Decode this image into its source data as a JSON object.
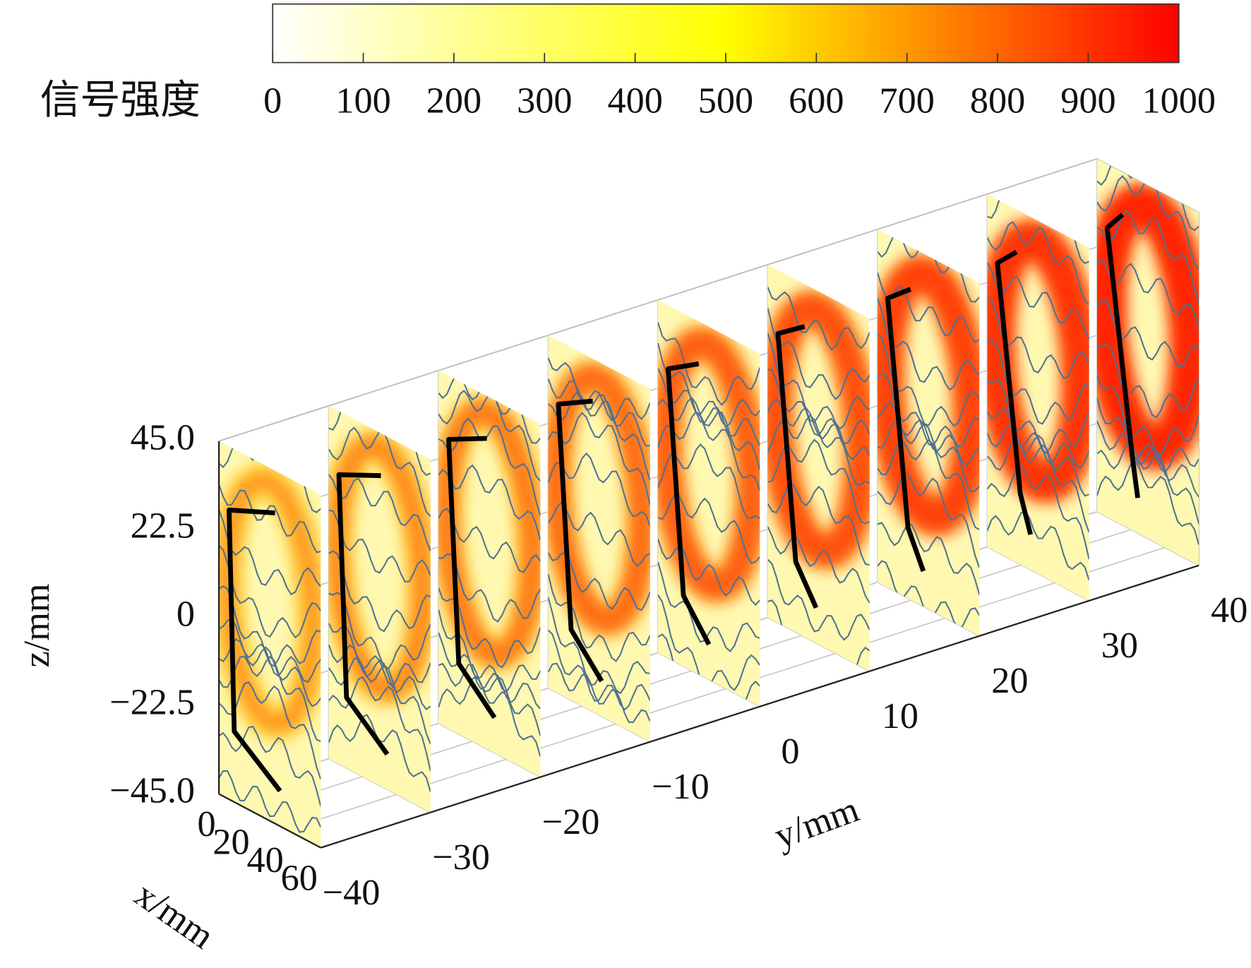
{
  "chart_data": {
    "type": "slices3d",
    "colorbar": {
      "label": "信号强度",
      "lim": [
        0,
        1000
      ],
      "ticks": [
        0,
        100,
        200,
        300,
        400,
        500,
        600,
        700,
        800,
        900,
        1000
      ],
      "colors": [
        "#ffffff",
        "#ffff00",
        "#ff0000"
      ]
    },
    "xlabel": "x/mm",
    "ylabel": "y/mm",
    "zlabel": "z/mm",
    "xlim": [
      0,
      60
    ],
    "ylim": [
      -40,
      40
    ],
    "zlim": [
      -45,
      45
    ],
    "xticks": [
      0,
      20,
      40,
      60
    ],
    "yticks": [
      {
        "value": -40,
        "label": "−40"
      },
      {
        "value": -30,
        "label": "−30"
      },
      {
        "value": -20,
        "label": "−20"
      },
      {
        "value": -10,
        "label": "−10"
      },
      0,
      10,
      20,
      30,
      40
    ],
    "zticks": [
      {
        "value": 45,
        "label": "45.0"
      },
      22.5,
      0,
      {
        "value": -22.5,
        "label": "−22.5"
      },
      {
        "value": -45,
        "label": "−45.0"
      }
    ],
    "slice_y": [
      -40,
      -30,
      -20,
      -10,
      0,
      10,
      20,
      30,
      40
    ]
  }
}
